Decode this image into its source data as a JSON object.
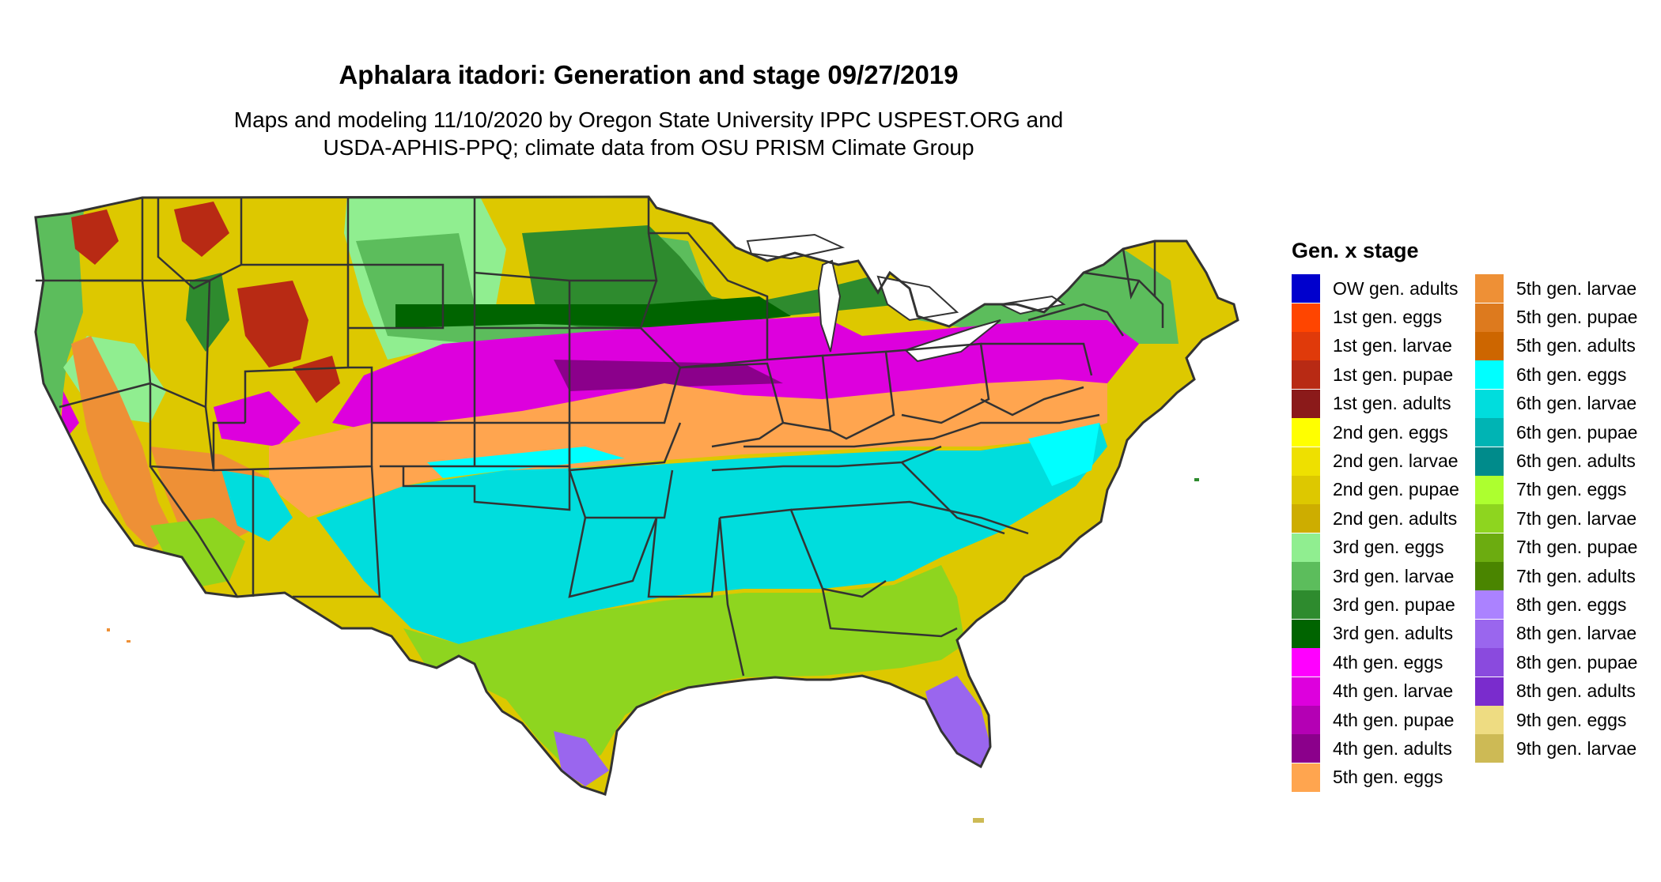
{
  "title": "Aphalara itadori: Generation and stage 09/27/2019",
  "subtitle_line1": "Maps and modeling 11/10/2020 by Oregon State University IPPC USPEST.ORG and",
  "subtitle_line2": "USDA-APHIS-PPQ; climate data from OSU PRISM Climate Group",
  "legend": {
    "title": "Gen. x stage",
    "items": [
      {
        "label": "OW gen. adults",
        "color": "#0000cd"
      },
      {
        "label": "1st gen. eggs",
        "color": "#ff4500"
      },
      {
        "label": "1st gen. larvae",
        "color": "#e03a0a"
      },
      {
        "label": "1st gen. pupae",
        "color": "#b82a14"
      },
      {
        "label": "1st gen. adults",
        "color": "#8b1a1a"
      },
      {
        "label": "2nd gen. eggs",
        "color": "#ffff00"
      },
      {
        "label": "2nd gen. larvae",
        "color": "#eee000"
      },
      {
        "label": "2nd gen. pupae",
        "color": "#ddc800"
      },
      {
        "label": "2nd gen. adults",
        "color": "#cdad00"
      },
      {
        "label": "3rd gen. eggs",
        "color": "#90ee90"
      },
      {
        "label": "3rd gen. larvae",
        "color": "#5cbd5c"
      },
      {
        "label": "3rd gen. pupae",
        "color": "#2e8b2e"
      },
      {
        "label": "3rd gen. adults",
        "color": "#006400"
      },
      {
        "label": "4th gen. eggs",
        "color": "#ff00ff"
      },
      {
        "label": "4th gen. larvae",
        "color": "#dd00dd"
      },
      {
        "label": "4th gen. pupae",
        "color": "#b400b4"
      },
      {
        "label": "4th gen. adults",
        "color": "#8b008b"
      },
      {
        "label": "5th gen. eggs",
        "color": "#ffa54f"
      },
      {
        "label": "5th gen. larvae",
        "color": "#ee9036"
      },
      {
        "label": "5th gen. pupae",
        "color": "#dd7a1e"
      },
      {
        "label": "5th gen. adults",
        "color": "#cd6600"
      },
      {
        "label": "6th gen. eggs",
        "color": "#00ffff"
      },
      {
        "label": "6th gen. larvae",
        "color": "#00dddd"
      },
      {
        "label": "6th gen. pupae",
        "color": "#00b4b4"
      },
      {
        "label": "6th gen. adults",
        "color": "#008b8b"
      },
      {
        "label": "7th gen. eggs",
        "color": "#adff2f"
      },
      {
        "label": "7th gen. larvae",
        "color": "#8ed51f"
      },
      {
        "label": "7th gen. pupae",
        "color": "#6cac10"
      },
      {
        "label": "7th gen. adults",
        "color": "#4a8500"
      },
      {
        "label": "8th gen. eggs",
        "color": "#ab82ff"
      },
      {
        "label": "8th gen. larvae",
        "color": "#9a66ee"
      },
      {
        "label": "8th gen. pupae",
        "color": "#8a4ade"
      },
      {
        "label": "8th gen. adults",
        "color": "#7a2ccd"
      },
      {
        "label": "9th gen. eggs",
        "color": "#eedc82"
      },
      {
        "label": "9th gen. larvae",
        "color": "#cdba55"
      }
    ]
  },
  "map": {
    "region": "Contiguous United States",
    "zones": [
      {
        "name": "northwest-rockies",
        "color": "#ddc800"
      },
      {
        "name": "pacific-coast",
        "color": "#5cbd5c"
      },
      {
        "name": "rocky-peaks",
        "color": "#b82a14"
      },
      {
        "name": "northern-plains",
        "color": "#90ee90"
      },
      {
        "name": "upper-midwest",
        "color": "#5cbd5c"
      },
      {
        "name": "great-lakes",
        "color": "#2e8b2e"
      },
      {
        "name": "northeast",
        "color": "#5cbd5c"
      },
      {
        "name": "maine-wisconsin-north",
        "color": "#ddc800"
      },
      {
        "name": "central-band",
        "color": "#dd00dd"
      },
      {
        "name": "southern-band",
        "color": "#ffa54f"
      },
      {
        "name": "gulf-band",
        "color": "#00dddd"
      },
      {
        "name": "gulf-coast",
        "color": "#8ed51f"
      },
      {
        "name": "florida-tip",
        "color": "#9a66ee"
      },
      {
        "name": "california-valley",
        "color": "#ee9036"
      },
      {
        "name": "desert-southwest",
        "color": "#8ed51f"
      },
      {
        "name": "lakes",
        "color": "#ffffff"
      }
    ]
  }
}
